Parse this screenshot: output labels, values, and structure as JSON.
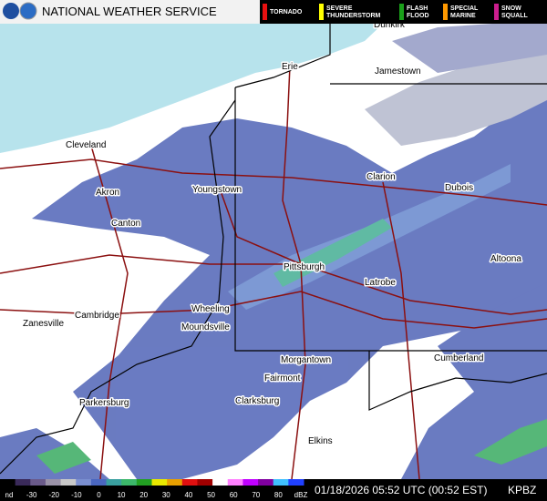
{
  "header": {
    "title": "NATIONAL WEATHER SERVICE",
    "warnings": [
      "TORNADO",
      "SEVERE THUNDERSTORM",
      "FLASH FLOOD",
      "SPECIAL MARINE",
      "SNOW SQUALL"
    ]
  },
  "cities": [
    "Dunkirk",
    "Erie",
    "Jamestown",
    "Cleveland",
    "Akron",
    "Youngstown",
    "Canton",
    "Clarion",
    "Dubois",
    "Pittsburgh",
    "Altoona",
    "Latrobe",
    "Wheeling",
    "Zanesville",
    "Cambridge",
    "Moundsville",
    "Morgantown",
    "Cumberland",
    "Fairmont",
    "Parkersburg",
    "Clarksburg",
    "Elkins"
  ],
  "scale": {
    "labels": [
      "nd",
      "-30",
      "-20",
      "-10",
      "0",
      "10",
      "20",
      "30",
      "40",
      "50",
      "60",
      "70",
      "80",
      "dBZ"
    ]
  },
  "footer": {
    "timestamp": "01/18/2026 05:52 UTC (00:52 EST)",
    "station": "KPBZ"
  }
}
